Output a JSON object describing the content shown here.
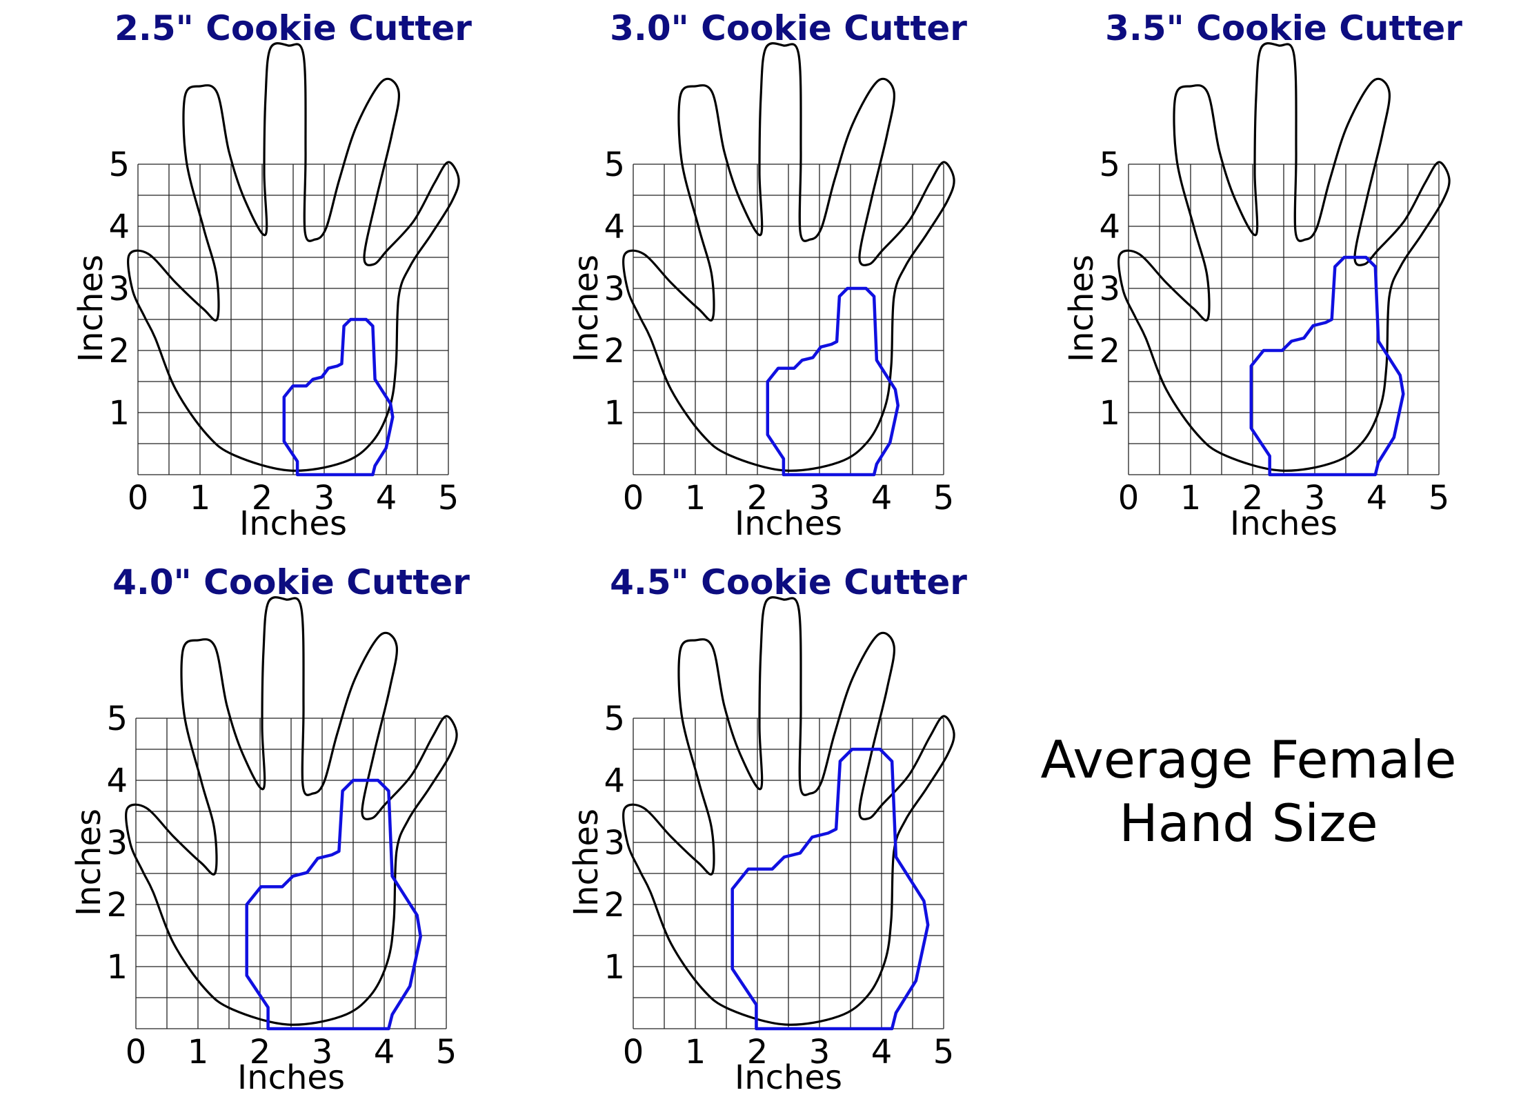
{
  "panels": [
    {
      "title": "2.5\" Cookie Cutter",
      "cutter_size_in": 2.5,
      "x_axis_label": "Inches",
      "y_axis_label": "Inches",
      "x_ticks": [
        "0",
        "1",
        "2",
        "3",
        "4",
        "5"
      ],
      "y_ticks": [
        "1",
        "2",
        "3",
        "4",
        "5"
      ]
    },
    {
      "title": "3.0\" Cookie Cutter",
      "cutter_size_in": 3.0,
      "x_axis_label": "Inches",
      "y_axis_label": "Inches",
      "x_ticks": [
        "0",
        "1",
        "2",
        "3",
        "4",
        "5"
      ],
      "y_ticks": [
        "1",
        "2",
        "3",
        "4",
        "5"
      ]
    },
    {
      "title": "3.5\" Cookie Cutter",
      "cutter_size_in": 3.5,
      "x_axis_label": "Inches",
      "y_axis_label": "Inches",
      "x_ticks": [
        "0",
        "1",
        "2",
        "3",
        "4",
        "5"
      ],
      "y_ticks": [
        "1",
        "2",
        "3",
        "4",
        "5"
      ]
    },
    {
      "title": "4.0\" Cookie Cutter",
      "cutter_size_in": 4.0,
      "x_axis_label": "Inches",
      "y_axis_label": "Inches",
      "x_ticks": [
        "0",
        "1",
        "2",
        "3",
        "4",
        "5"
      ],
      "y_ticks": [
        "1",
        "2",
        "3",
        "4",
        "5"
      ]
    },
    {
      "title": "4.5\" Cookie Cutter",
      "cutter_size_in": 4.5,
      "x_axis_label": "Inches",
      "y_axis_label": "Inches",
      "x_ticks": [
        "0",
        "1",
        "2",
        "3",
        "4",
        "5"
      ],
      "y_ticks": [
        "1",
        "2",
        "3",
        "4",
        "5"
      ]
    }
  ],
  "caption": {
    "line1": "Average Female",
    "line2": "Hand Size"
  },
  "colors": {
    "title": "#0d0d80",
    "cutter": "#1010e0",
    "hand": "#000000",
    "grid": "#222222"
  }
}
